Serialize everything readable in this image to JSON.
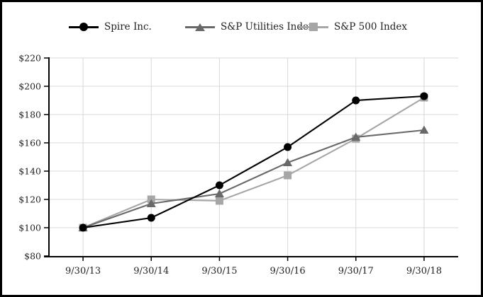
{
  "legend": {
    "items": [
      {
        "label": "Spire Inc.",
        "marker": "circle",
        "color": "#000000"
      },
      {
        "label": "S&P Utilities Index",
        "marker": "triangle",
        "color": "#696969"
      },
      {
        "label": "S&P 500 Index",
        "marker": "square",
        "color": "#a6a6a6"
      }
    ]
  },
  "chart_data": {
    "type": "line",
    "title": "",
    "categories": [
      "9/30/13",
      "9/30/14",
      "9/30/15",
      "9/30/16",
      "9/30/17",
      "9/30/18"
    ],
    "series": [
      {
        "name": "Spire Inc.",
        "marker": "circle",
        "color": "#000000",
        "values": [
          100,
          107,
          130,
          157,
          190,
          193
        ]
      },
      {
        "name": "S&P Utilities Index",
        "marker": "triangle",
        "color": "#696969",
        "values": [
          100,
          117,
          124,
          146,
          164,
          169
        ]
      },
      {
        "name": "S&P 500 Index",
        "marker": "square",
        "color": "#a6a6a6",
        "values": [
          100,
          120,
          119,
          137,
          163,
          192
        ]
      }
    ],
    "ylim": [
      80,
      220
    ],
    "ytick_step": 20,
    "ytick_prefix": "$",
    "ytick_labels": [
      "$80",
      "$100",
      "$120",
      "$140",
      "$160",
      "$180",
      "$200",
      "$220"
    ],
    "grid": true,
    "grid_color": "#d8d8d8",
    "axis_color": "#000000",
    "legend_position": "top"
  }
}
